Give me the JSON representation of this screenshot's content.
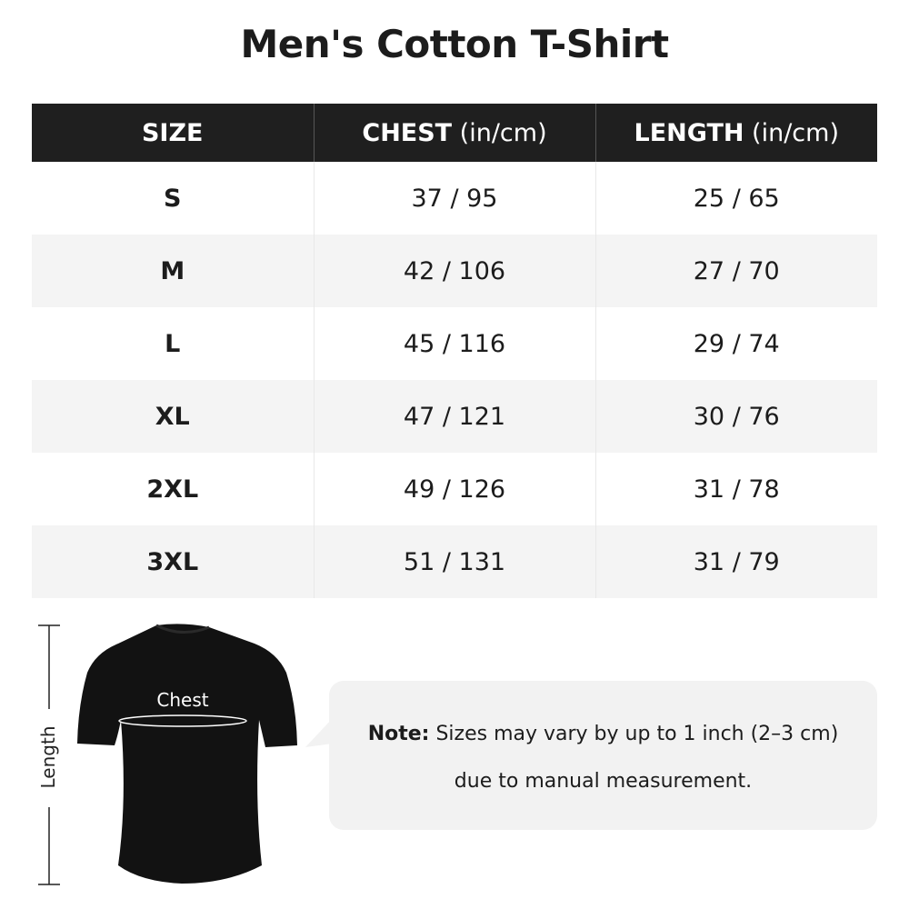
{
  "title": "Men's Cotton T-Shirt",
  "table": {
    "headers": [
      {
        "label": "SIZE",
        "unit": ""
      },
      {
        "label": "CHEST",
        "unit": " (in/cm)"
      },
      {
        "label": "LENGTH",
        "unit": " (in/cm)"
      }
    ],
    "rows": [
      [
        "S",
        "37 / 95",
        "25 / 65"
      ],
      [
        "M",
        "42 / 106",
        "27 / 70"
      ],
      [
        "L",
        "45 / 116",
        "29 / 74"
      ],
      [
        "XL",
        "47 / 121",
        "30 / 76"
      ],
      [
        "2XL",
        "49 / 126",
        "31 / 78"
      ],
      [
        "3XL",
        "51 / 131",
        "31 / 79"
      ]
    ]
  },
  "diagram": {
    "chest_label": "Chest",
    "length_label": "Length"
  },
  "note": {
    "prefix": "Note:",
    "line1": " Sizes may vary by up to 1 inch (2–3 cm)",
    "line2": "due to manual measurement."
  },
  "colors": {
    "header_bg": "#1f1f1f",
    "alt_row": "#f4f4f4",
    "bubble": "#f2f2f2"
  }
}
